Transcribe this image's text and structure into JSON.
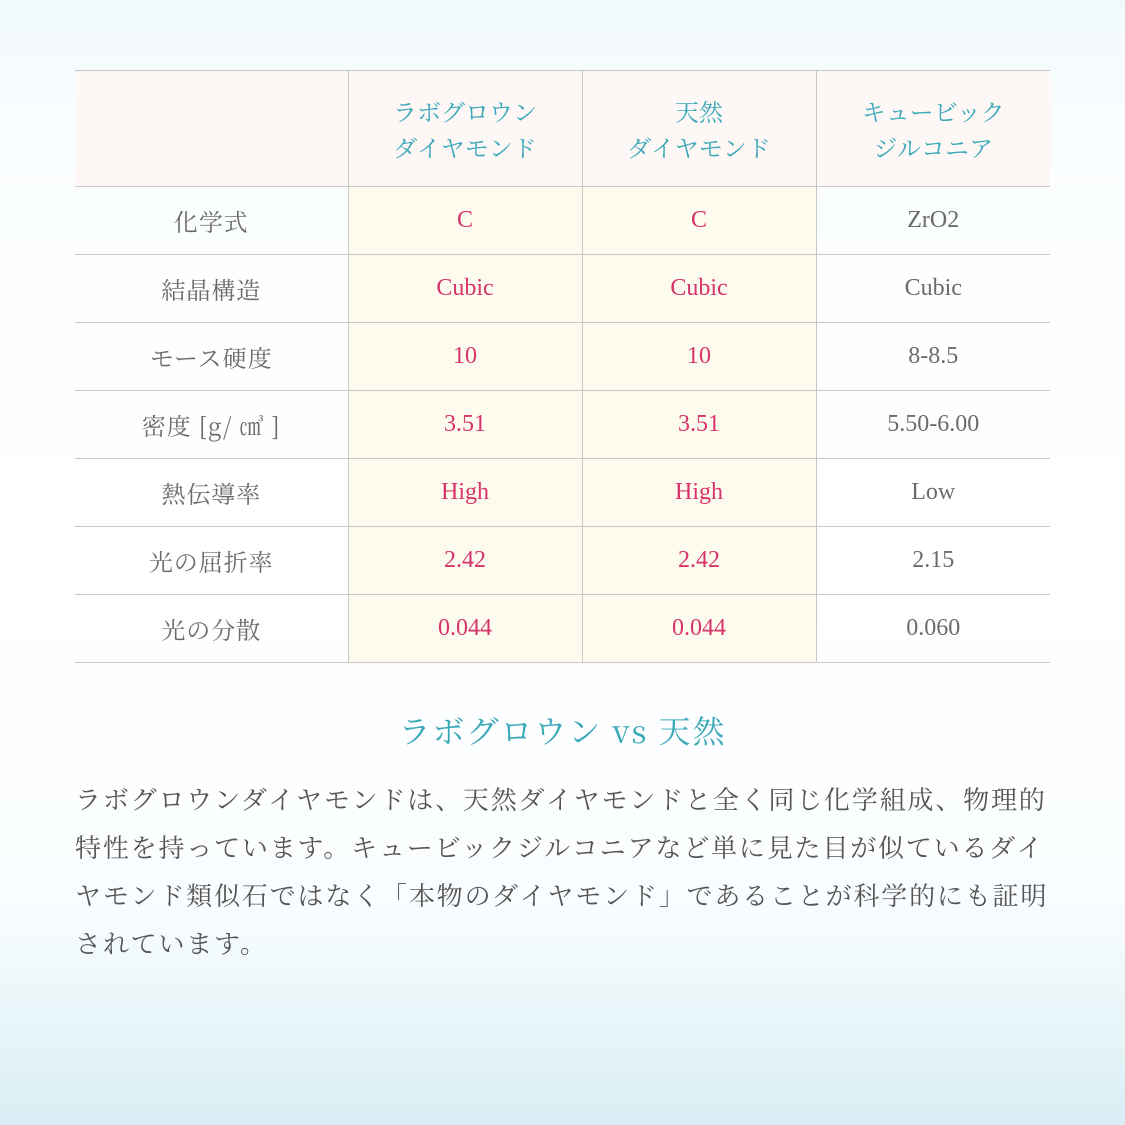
{
  "colors": {
    "border": "#c7c7c7",
    "header_bg": "#fdf7f5",
    "header_text": "#3aa8b8",
    "row_label_text": "#6b6b6b",
    "highlight_cell_bg": "#fdfaee",
    "highlight_text": "#d6336c",
    "muted_text": "#6b6b6b",
    "heading_text": "#3aa8b8",
    "para_text": "#555555"
  },
  "table": {
    "col_widths_pct": [
      28,
      24,
      24,
      24
    ],
    "columns": [
      {
        "line1": "",
        "line2": ""
      },
      {
        "line1": "ラボグロウン",
        "line2": "ダイヤモンド"
      },
      {
        "line1": "天然",
        "line2": "ダイヤモンド"
      },
      {
        "line1": "キュービック",
        "line2": "ジルコニア"
      }
    ],
    "highlight_cols": [
      1,
      2
    ],
    "rows": [
      {
        "label": "化学式",
        "cells": [
          "C",
          "C",
          "ZrO2"
        ]
      },
      {
        "label": "結晶構造",
        "cells": [
          "Cubic",
          "Cubic",
          "Cubic"
        ]
      },
      {
        "label": "モース硬度",
        "cells": [
          "10",
          "10",
          "8-8.5"
        ]
      },
      {
        "label": "密度 [g/ ㎤ ]",
        "cells": [
          "3.51",
          "3.51",
          "5.50-6.00"
        ]
      },
      {
        "label": "熱伝導率",
        "cells": [
          "High",
          "High",
          "Low"
        ]
      },
      {
        "label": "光の屈折率",
        "cells": [
          "2.42",
          "2.42",
          "2.15"
        ]
      },
      {
        "label": "光の分散",
        "cells": [
          "0.044",
          "0.044",
          "0.060"
        ]
      }
    ]
  },
  "heading": "ラボグロウン vs 天然",
  "paragraph": "ラボグロウンダイヤモンドは、天然ダイヤモンドと全く同じ化学組成、物理的特性を持っています。キュービックジルコニアなど単に見た目が似ているダイヤモンド類似石ではなく「本物のダイヤモンド」であることが科学的にも証明されています。"
}
